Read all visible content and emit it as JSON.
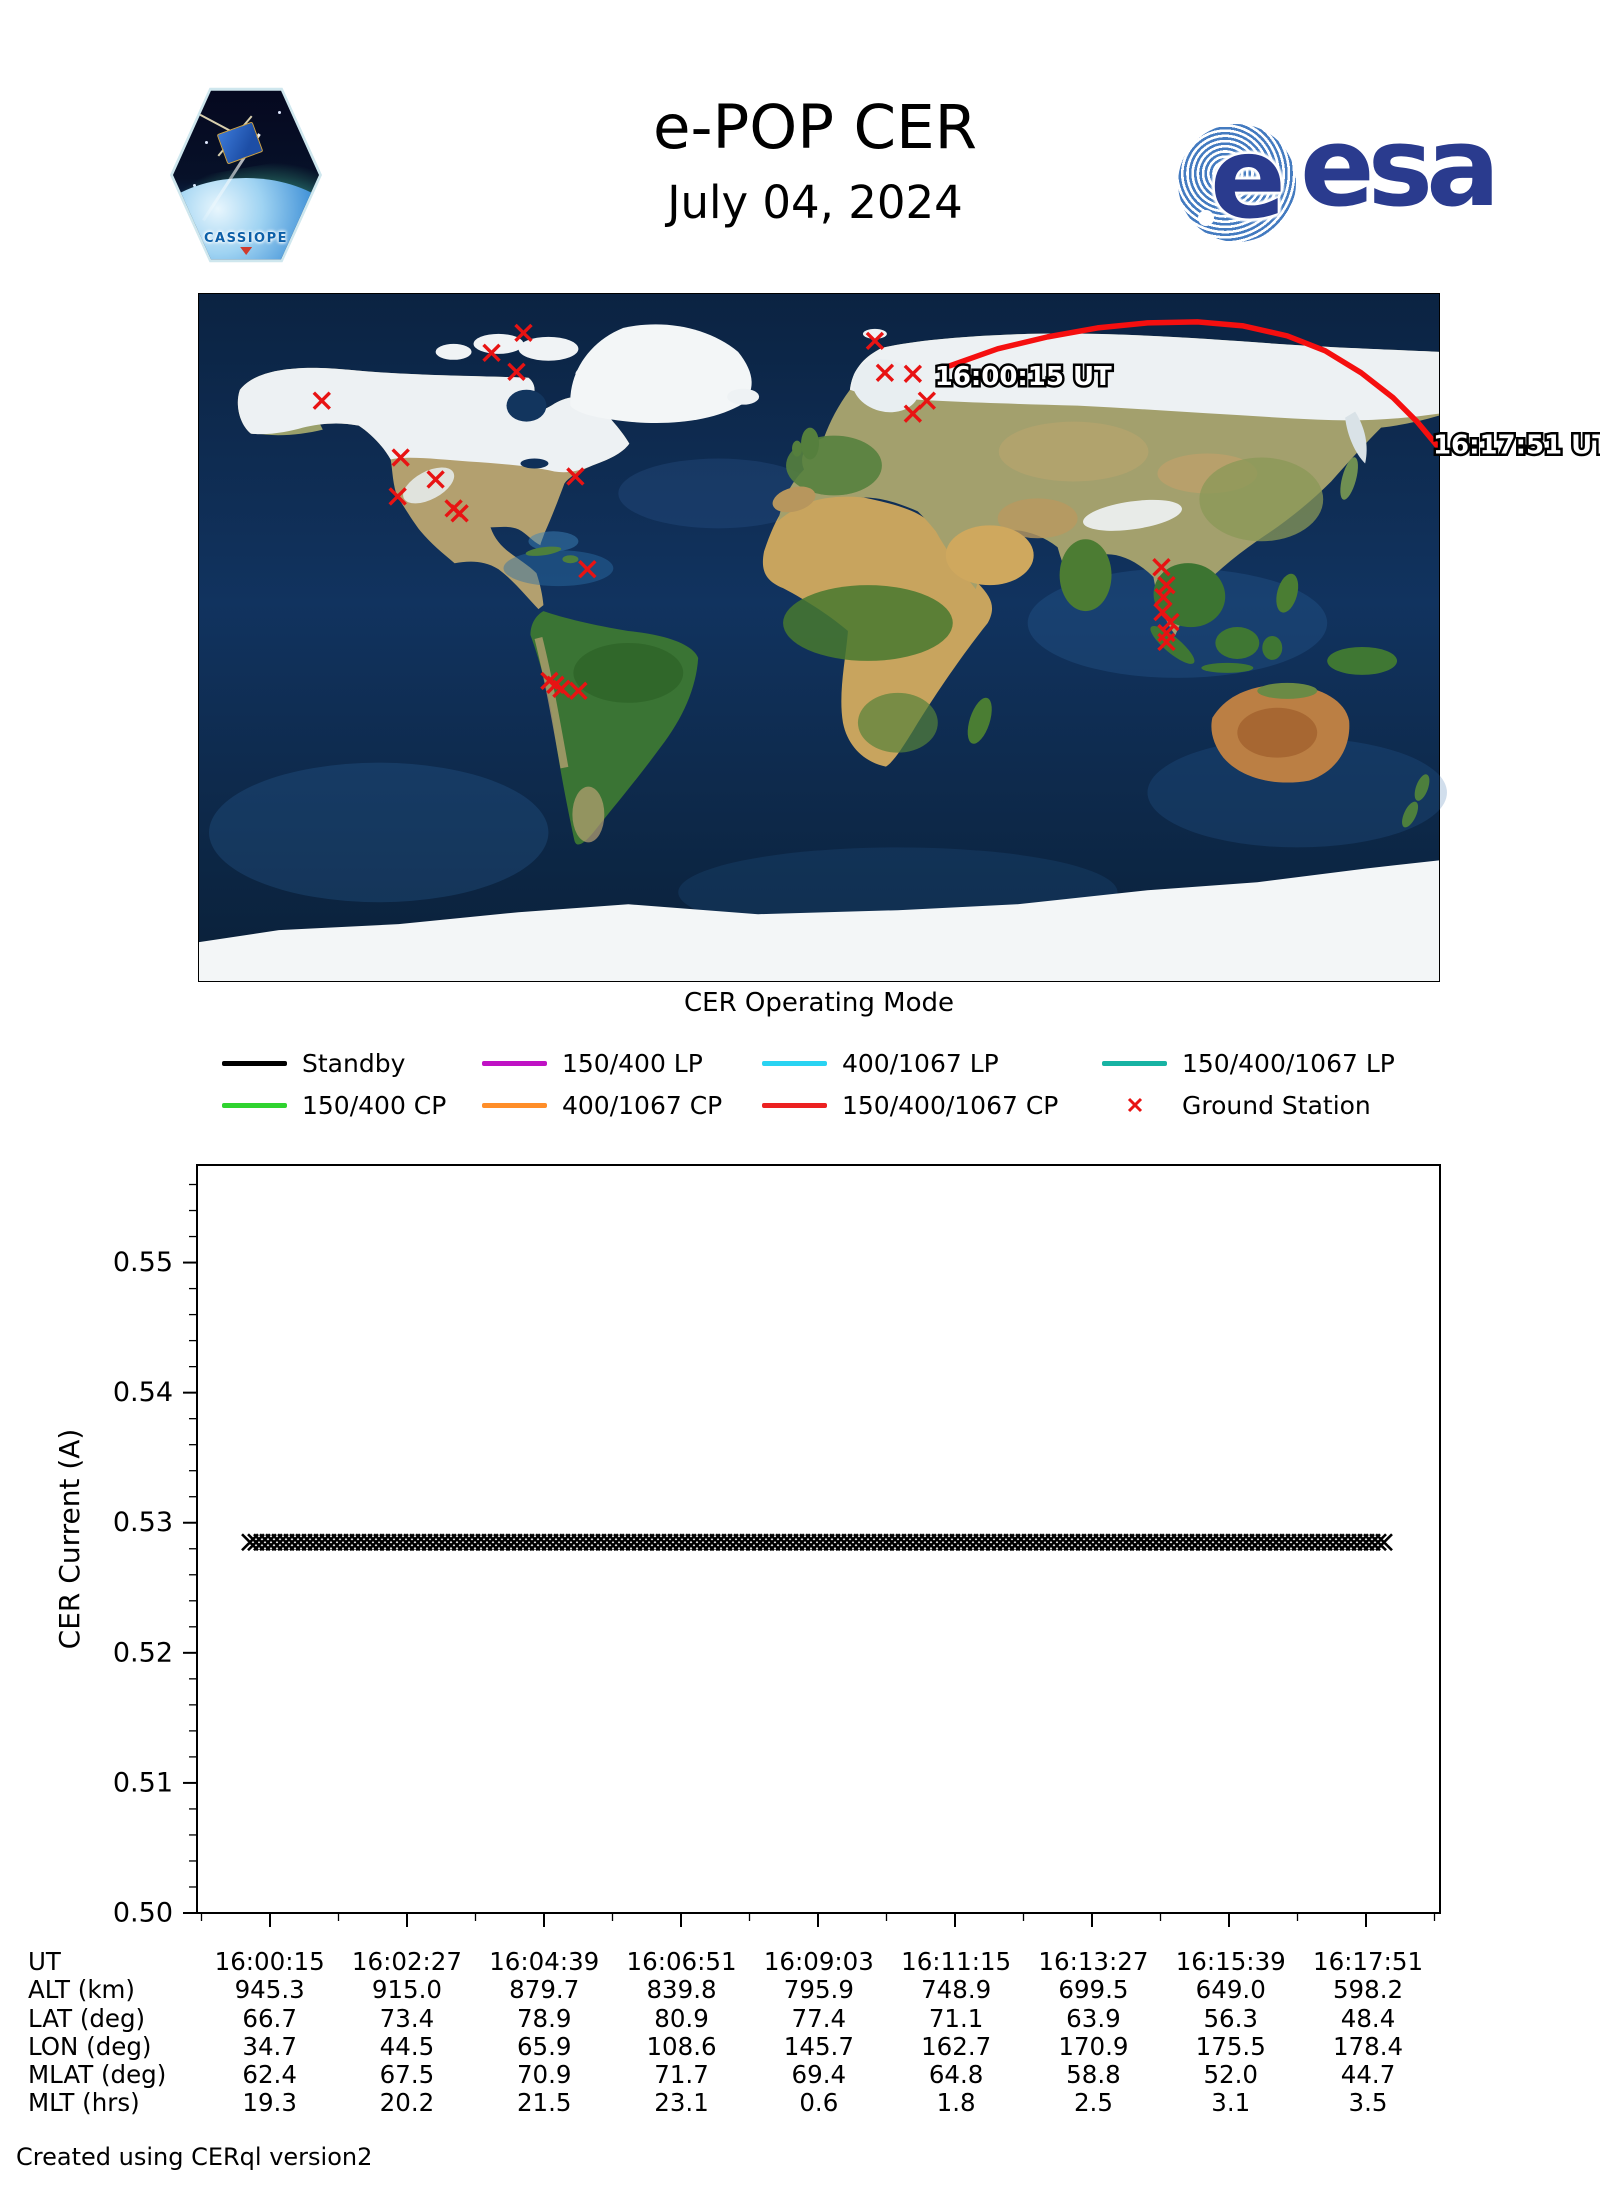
{
  "header": {
    "title": "e-POP CER",
    "date": "July 04, 2024",
    "cassiope_label": "CASSIOPE",
    "esa_e": "e",
    "esa_label": "esa"
  },
  "map": {
    "start_label": "16:00:15 UT",
    "end_label": "16:17:51 UT",
    "track_color": "#f50f0f",
    "ground_station_color": "#e81313",
    "track": [
      [
        752,
        72
      ],
      [
        800,
        55
      ],
      [
        850,
        43
      ],
      [
        900,
        34
      ],
      [
        950,
        29
      ],
      [
        1000,
        28
      ],
      [
        1046,
        32
      ],
      [
        1090,
        42
      ],
      [
        1128,
        57
      ],
      [
        1164,
        79
      ],
      [
        1196,
        104
      ],
      [
        1220,
        128
      ],
      [
        1240,
        152
      ]
    ],
    "stations": [
      [
        325,
        39
      ],
      [
        293,
        59
      ],
      [
        318,
        78
      ],
      [
        123,
        107
      ],
      [
        202,
        164
      ],
      [
        237,
        186
      ],
      [
        199,
        203
      ],
      [
        255,
        215
      ],
      [
        261,
        220
      ],
      [
        377,
        183
      ],
      [
        389,
        276
      ],
      [
        351,
        388
      ],
      [
        357,
        392
      ],
      [
        363,
        396
      ],
      [
        380,
        398
      ],
      [
        677,
        47
      ],
      [
        687,
        79
      ],
      [
        715,
        80
      ],
      [
        729,
        107
      ],
      [
        715,
        120
      ],
      [
        964,
        274
      ],
      [
        969,
        292
      ],
      [
        966,
        304
      ],
      [
        965,
        319
      ],
      [
        973,
        329
      ],
      [
        969,
        340
      ],
      [
        969,
        349
      ]
    ]
  },
  "legend": {
    "title": "CER Operating Mode",
    "rows": [
      [
        {
          "label": "Standby",
          "color": "#000000",
          "type": "line"
        },
        {
          "label": "150/400 LP",
          "color": "#bf12c4",
          "type": "line"
        },
        {
          "label": "400/1067 LP",
          "color": "#29d3f2",
          "type": "line"
        },
        {
          "label": "150/400/1067 LP",
          "color": "#17b3a3",
          "type": "line"
        }
      ],
      [
        {
          "label": "150/400 CP",
          "color": "#2fd32f",
          "type": "line"
        },
        {
          "label": "400/1067 CP",
          "color": "#ff8e29",
          "type": "line"
        },
        {
          "label": "150/400/1067 CP",
          "color": "#ec2121",
          "type": "line"
        },
        {
          "label": "Ground Station",
          "color": "#e81313",
          "type": "marker"
        }
      ]
    ]
  },
  "chart_data": {
    "type": "scatter",
    "marker": "x",
    "title": "",
    "xlabel": "UT",
    "ylabel": "CER Current (A)",
    "ylim": [
      0.5,
      0.5575
    ],
    "yticks": [
      "0.50",
      "0.51",
      "0.52",
      "0.53",
      "0.54",
      "0.55"
    ],
    "y_minor_step": 0.002,
    "x_ticklabels": [
      "16:00:15",
      "16:02:27",
      "16:04:39",
      "16:06:51",
      "16:09:03",
      "16:11:15",
      "16:13:27",
      "16:15:39",
      "16:17:51"
    ],
    "grid": false,
    "legend_position": "none",
    "series": [
      {
        "name": "CER Current",
        "color": "#000000",
        "value": 0.5285,
        "x_start_frac": 0.043,
        "x_end_frac": 0.959
      }
    ]
  },
  "table": {
    "row_labels": [
      "UT",
      "ALT (km)",
      "LAT (deg)",
      "LON (deg)",
      "MLAT (deg)",
      "MLT (hrs)"
    ],
    "columns": [
      [
        "16:00:15",
        "945.3",
        "66.7",
        "34.7",
        "62.4",
        "19.3"
      ],
      [
        "16:02:27",
        "915.0",
        "73.4",
        "44.5",
        "67.5",
        "20.2"
      ],
      [
        "16:04:39",
        "879.7",
        "78.9",
        "65.9",
        "70.9",
        "21.5"
      ],
      [
        "16:06:51",
        "839.8",
        "80.9",
        "108.6",
        "71.7",
        "23.1"
      ],
      [
        "16:09:03",
        "795.9",
        "77.4",
        "145.7",
        "69.4",
        "0.6"
      ],
      [
        "16:11:15",
        "748.9",
        "71.1",
        "162.7",
        "64.8",
        "1.8"
      ],
      [
        "16:13:27",
        "699.5",
        "63.9",
        "170.9",
        "58.8",
        "2.5"
      ],
      [
        "16:15:39",
        "649.0",
        "56.3",
        "175.5",
        "52.0",
        "3.1"
      ],
      [
        "16:17:51",
        "598.2",
        "48.4",
        "178.4",
        "44.7",
        "3.5"
      ]
    ]
  },
  "footer": {
    "credit": "Created using CERql version2"
  }
}
